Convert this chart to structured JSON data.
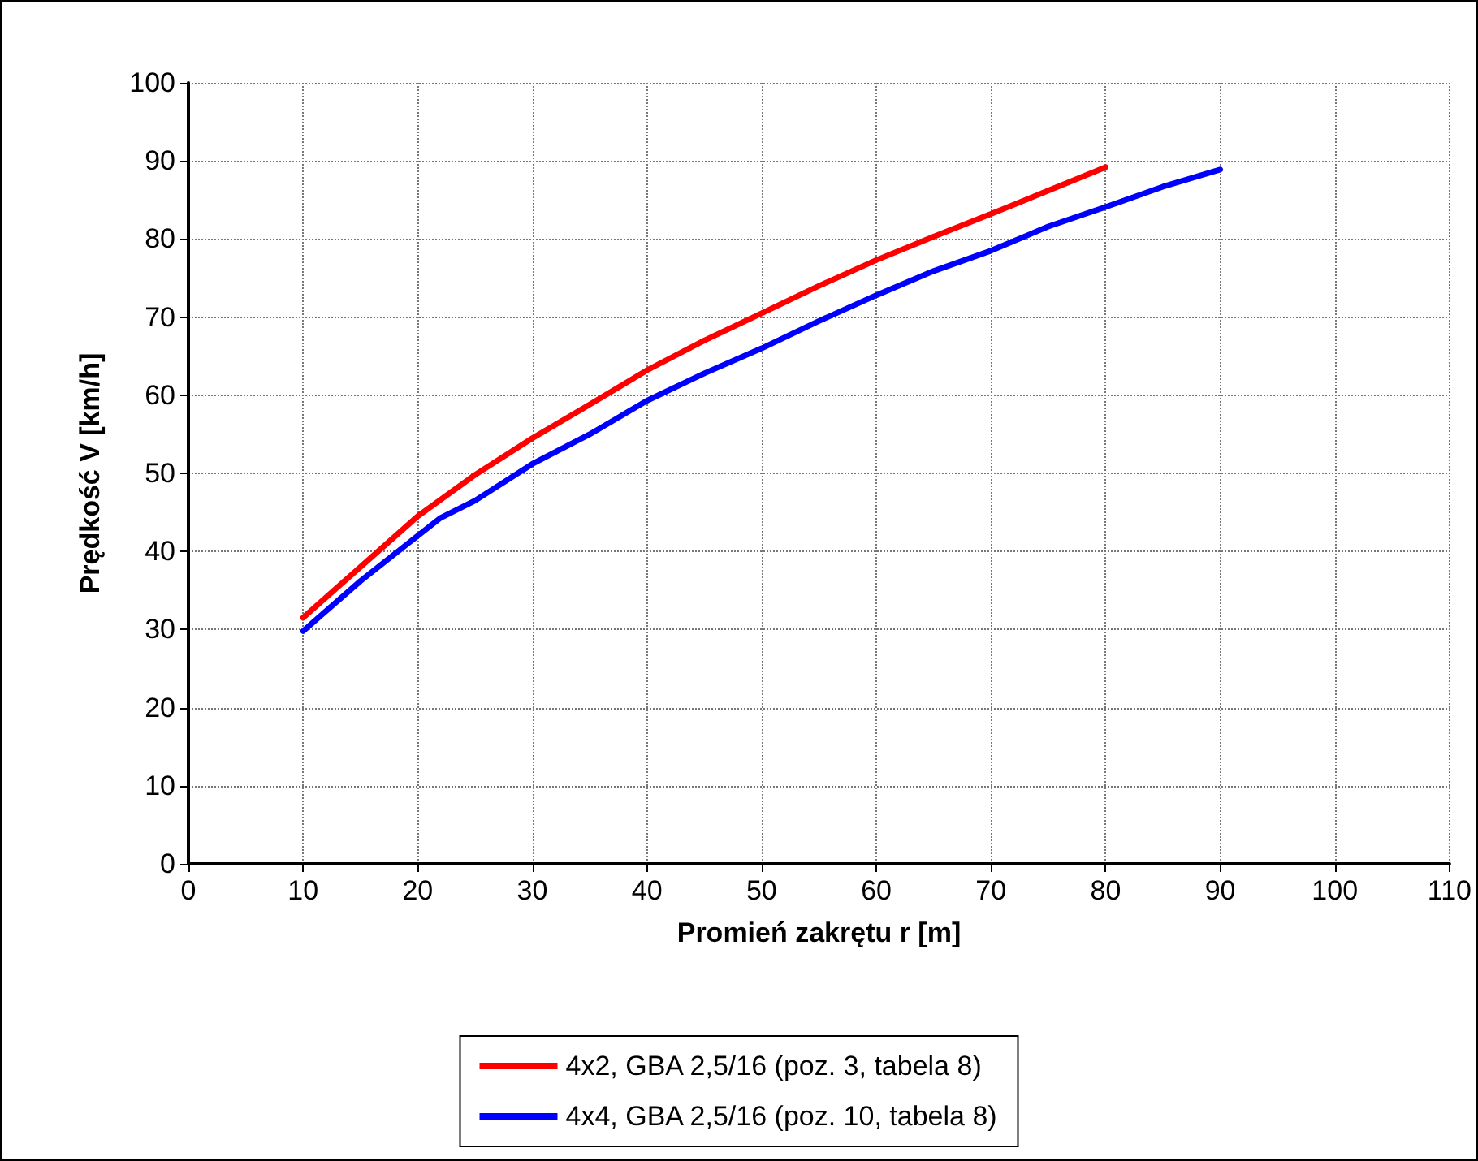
{
  "chart_data": {
    "type": "line",
    "xlabel": "Promień zakrętu r [m]",
    "ylabel": "Prędkość V [km/h]",
    "xlim": [
      0,
      110
    ],
    "xticks": [
      0,
      10,
      20,
      30,
      40,
      50,
      60,
      70,
      80,
      90,
      100,
      110
    ],
    "ylim": [
      0,
      100
    ],
    "yticks": [
      0,
      10,
      20,
      30,
      40,
      50,
      60,
      70,
      80,
      90,
      100
    ],
    "grid": true,
    "legend": "bottom",
    "marker": "none",
    "line_style": "solid",
    "series": [
      {
        "name": "4x2, GBA 2,5/16 (poz. 3, tabela 8)",
        "color": "#ff0000",
        "x": [
          10,
          15,
          20,
          25,
          30,
          35,
          40,
          45,
          50,
          55,
          60,
          65,
          70,
          75,
          80
        ],
        "values": [
          31.5,
          38,
          44.5,
          49.8,
          54.5,
          58.8,
          63.2,
          67,
          70.5,
          74,
          77.3,
          80.3,
          83.2,
          86.2,
          89.2
        ]
      },
      {
        "name": "4x4, GBA 2,5/16 (poz. 10, tabela 8)",
        "color": "#0000ff",
        "x": [
          10,
          15,
          20,
          22,
          25,
          30,
          35,
          40,
          45,
          50,
          55,
          60,
          65,
          70,
          75,
          80,
          85,
          90
        ],
        "values": [
          29.8,
          36.2,
          42,
          44.3,
          46.5,
          51.2,
          55,
          59.3,
          62.8,
          66,
          69.5,
          72.8,
          75.9,
          78.5,
          81.6,
          84.1,
          86.7,
          88.9
        ]
      }
    ]
  }
}
